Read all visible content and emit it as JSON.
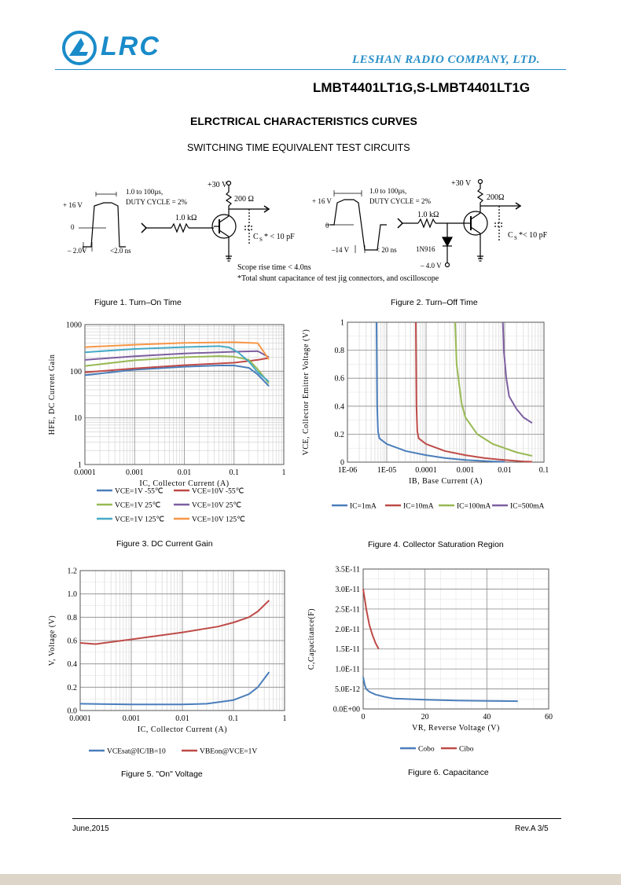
{
  "header": {
    "logo_text": "LRC",
    "company": "LESHAN RADIO COMPANY, LTD.",
    "part_number": "LMBT4401LT1G,S-LMBT4401LT1G"
  },
  "section_title": "ELRCTRICAL CHARACTERISTICS CURVES",
  "subtitle": "SWITCHING TIME EQUIVALENT TEST CIRCUITS",
  "circuit1": {
    "pulse_width": "1.0 to 100µs,",
    "duty": "DUTY CYCLE = 2%",
    "vhigh": "+ 16 V",
    "vzero": "0",
    "vlow": "– 2.0V",
    "rise": "<2.0 ns",
    "rb": "1.0 kΩ",
    "vcc": "+30 V",
    "rc": "200 Ω",
    "cs": "C",
    "cs_sub": "S",
    "cs_val": "* < 10 pF",
    "scope": "Scope rise time < 4.0ns",
    "note": "*Total shunt capacitance of test jig connectors, and oscilloscope"
  },
  "circuit2": {
    "pulse_width": "1.0 to 100µs,",
    "duty": "DUTY CYCLE = 2%",
    "vhigh": "+ 16 V",
    "vzero": "0",
    "vlow": "–14 V",
    "fall": "< 20 ns",
    "rb": "1.0 kΩ",
    "vcc": "+30 V",
    "rc": "200Ω",
    "cs": "C",
    "cs_sub": "S",
    "cs_val": "*< 10 pF",
    "diode": "1N916",
    "vneg": "– 4.0 V"
  },
  "captions": {
    "fig1": "Figure 1. Turn–On Time",
    "fig2": "Figure 2. Turn–Off Time",
    "fig3": "Figure 3.  DC Current Gain",
    "fig4": "Figure 4. Collector Saturation Region",
    "fig5": "Figure 5.  \"On\" Voltage",
    "fig6": "Figure 6. Capacitance"
  },
  "footer": {
    "date": "June,2015",
    "rev": "Rev.A 3/5"
  },
  "chart_data": [
    {
      "id": "fig3",
      "type": "line",
      "xscale": "log",
      "yscale": "log",
      "xlim": [
        0.0001,
        1
      ],
      "ylim": [
        1,
        1000
      ],
      "xticks": [
        "0.0001",
        "0.001",
        "0.01",
        "0.1",
        "1"
      ],
      "yticks": [
        "1",
        "10",
        "100",
        "1000"
      ],
      "xlabel": "IC, Collector Current (A)",
      "ylabel": "HFE, DC Current  Gain",
      "series": [
        {
          "name": "VCE=1V -55℃",
          "color": "#4a7ebb",
          "points": [
            [
              0.0001,
              82
            ],
            [
              0.001,
              108
            ],
            [
              0.01,
              125
            ],
            [
              0.05,
              133
            ],
            [
              0.1,
              133
            ],
            [
              0.2,
              118
            ],
            [
              0.3,
              85
            ],
            [
              0.5,
              48
            ]
          ]
        },
        {
          "name": "VCE=10V -55℃",
          "color": "#be4b48",
          "points": [
            [
              0.0001,
              95
            ],
            [
              0.001,
              115
            ],
            [
              0.01,
              135
            ],
            [
              0.1,
              152
            ],
            [
              0.3,
              175
            ],
            [
              0.5,
              192
            ]
          ]
        },
        {
          "name": "VCE=1V 25℃",
          "color": "#98b954",
          "points": [
            [
              0.0001,
              130
            ],
            [
              0.001,
              172
            ],
            [
              0.01,
              200
            ],
            [
              0.05,
              212
            ],
            [
              0.1,
              205
            ],
            [
              0.2,
              175
            ],
            [
              0.3,
              110
            ],
            [
              0.5,
              55
            ]
          ]
        },
        {
          "name": "VCE=10V 25℃",
          "color": "#7d5fa0",
          "points": [
            [
              0.0001,
              175
            ],
            [
              0.001,
              210
            ],
            [
              0.01,
              240
            ],
            [
              0.1,
              262
            ],
            [
              0.3,
              270
            ],
            [
              0.5,
              200
            ]
          ]
        },
        {
          "name": "VCE=1V 125℃",
          "color": "#46aac5",
          "points": [
            [
              0.0001,
              255
            ],
            [
              0.001,
              300
            ],
            [
              0.01,
              330
            ],
            [
              0.05,
              345
            ],
            [
              0.08,
              325
            ],
            [
              0.12,
              255
            ],
            [
              0.2,
              160
            ],
            [
              0.3,
              95
            ],
            [
              0.5,
              60
            ]
          ]
        },
        {
          "name": "VCE=10V 125℃",
          "color": "#f79646",
          "points": [
            [
              0.0001,
              330
            ],
            [
              0.001,
              370
            ],
            [
              0.01,
              405
            ],
            [
              0.1,
              420
            ],
            [
              0.3,
              400
            ],
            [
              0.5,
              180
            ]
          ]
        }
      ]
    },
    {
      "id": "fig4",
      "type": "line",
      "xscale": "log",
      "yscale": "linear",
      "xlim": [
        1e-06,
        0.1
      ],
      "ylim": [
        0,
        1
      ],
      "xticks": [
        "1E-06",
        "1E-05",
        "0.0001",
        "0.001",
        "0.01",
        "0.1"
      ],
      "yticks": [
        "0",
        "0.2",
        "0.4",
        "0.6",
        "0.8",
        "1"
      ],
      "xlabel": "IB, Base Current (A)",
      "ylabel": "VCE, Collector Emitter Voltage (V)",
      "series": [
        {
          "name": "IC=1mA",
          "color": "#4a7ebb",
          "points": [
            [
              5.5e-06,
              1.0
            ],
            [
              5.7e-06,
              0.4
            ],
            [
              6e-06,
              0.22
            ],
            [
              6.5e-06,
              0.17
            ],
            [
              1e-05,
              0.13
            ],
            [
              3e-05,
              0.08
            ],
            [
              0.0001,
              0.05
            ],
            [
              0.0003,
              0.03
            ],
            [
              0.001,
              0.015
            ],
            [
              0.005,
              0.005
            ],
            [
              0.01,
              0.003
            ]
          ]
        },
        {
          "name": "IC=10mA",
          "color": "#be4b48",
          "points": [
            [
              5.5e-05,
              1.0
            ],
            [
              5.7e-05,
              0.4
            ],
            [
              6e-05,
              0.22
            ],
            [
              6.5e-05,
              0.17
            ],
            [
              0.0001,
              0.13
            ],
            [
              0.0003,
              0.08
            ],
            [
              0.001,
              0.05
            ],
            [
              0.003,
              0.03
            ],
            [
              0.01,
              0.015
            ],
            [
              0.03,
              0.005
            ],
            [
              0.05,
              0.003
            ]
          ]
        },
        {
          "name": "IC=100mA",
          "color": "#98b954",
          "points": [
            [
              0.00055,
              1.0
            ],
            [
              0.0006,
              0.7
            ],
            [
              0.0008,
              0.42
            ],
            [
              0.001,
              0.32
            ],
            [
              0.002,
              0.2
            ],
            [
              0.005,
              0.13
            ],
            [
              0.01,
              0.1
            ],
            [
              0.02,
              0.07
            ],
            [
              0.05,
              0.045
            ]
          ]
        },
        {
          "name": "IC=500mA",
          "color": "#7d5fa0",
          "points": [
            [
              0.009,
              1.0
            ],
            [
              0.0095,
              0.8
            ],
            [
              0.011,
              0.6
            ],
            [
              0.013,
              0.47
            ],
            [
              0.02,
              0.38
            ],
            [
              0.03,
              0.32
            ],
            [
              0.05,
              0.28
            ]
          ]
        }
      ]
    },
    {
      "id": "fig5",
      "type": "line",
      "xscale": "log",
      "yscale": "linear",
      "xlim": [
        0.0001,
        1
      ],
      "ylim": [
        0,
        1.2
      ],
      "xticks": [
        "0.0001",
        "0.001",
        "0.01",
        "0.1",
        "1"
      ],
      "yticks": [
        "0.0",
        "0.2",
        "0.4",
        "0.6",
        "0.8",
        "1.0",
        "1.2"
      ],
      "xlabel": "IC, Collector Current (A)",
      "ylabel": "V, Voltage (V)",
      "series": [
        {
          "name": "VCEsat@IC/IB=10",
          "color": "#4a7ebb",
          "points": [
            [
              0.0001,
              0.058
            ],
            [
              0.001,
              0.052
            ],
            [
              0.01,
              0.052
            ],
            [
              0.03,
              0.058
            ],
            [
              0.1,
              0.09
            ],
            [
              0.2,
              0.14
            ],
            [
              0.3,
              0.2
            ],
            [
              0.5,
              0.33
            ]
          ]
        },
        {
          "name": "VBEon@VCE=1V",
          "color": "#be4b48",
          "points": [
            [
              0.0001,
              0.58
            ],
            [
              0.0002,
              0.57
            ],
            [
              0.001,
              0.61
            ],
            [
              0.01,
              0.67
            ],
            [
              0.05,
              0.72
            ],
            [
              0.1,
              0.755
            ],
            [
              0.2,
              0.8
            ],
            [
              0.3,
              0.85
            ],
            [
              0.5,
              0.945
            ]
          ]
        }
      ]
    },
    {
      "id": "fig6",
      "type": "line",
      "xscale": "linear",
      "yscale": "linear",
      "xlim": [
        0,
        60
      ],
      "ylim": [
        0,
        3.5e-11
      ],
      "xticks": [
        "0",
        "20",
        "40",
        "60"
      ],
      "yticks": [
        "0.0E+00",
        "5.0E-12",
        "1.0E-11",
        "1.5E-11",
        "2.0E-11",
        "2.5E-11",
        "3.0E-11",
        "3.5E-11"
      ],
      "xlabel": "VR, Reverse Voltage (V)",
      "ylabel": "C,Capacitance(F)",
      "series": [
        {
          "name": "Cobo",
          "color": "#4a7ebb",
          "points": [
            [
              0,
              8e-12
            ],
            [
              0.5,
              6e-12
            ],
            [
              1,
              5e-12
            ],
            [
              2,
              4.3e-12
            ],
            [
              4,
              3.6e-12
            ],
            [
              7,
              3e-12
            ],
            [
              10,
              2.6e-12
            ],
            [
              20,
              2.3e-12
            ],
            [
              30,
              2.1e-12
            ],
            [
              40,
              2e-12
            ],
            [
              50,
              1.95e-12
            ]
          ]
        },
        {
          "name": "Cibo",
          "color": "#be4b48",
          "points": [
            [
              0,
              3e-11
            ],
            [
              0.5,
              2.75e-11
            ],
            [
              1,
              2.5e-11
            ],
            [
              2,
              2.1e-11
            ],
            [
              3,
              1.85e-11
            ],
            [
              4,
              1.65e-11
            ],
            [
              5,
              1.5e-11
            ]
          ]
        }
      ]
    }
  ]
}
